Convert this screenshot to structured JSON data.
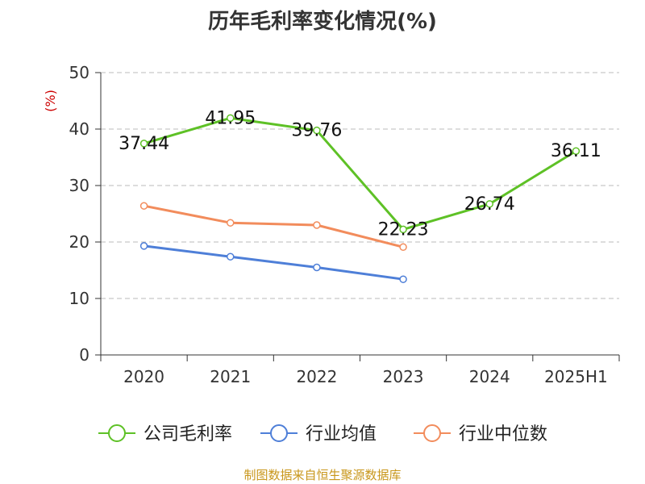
{
  "chart_data": {
    "type": "line",
    "title": "历年毛利率变化情况(%)",
    "ylabel": "(%)",
    "ylim": [
      0,
      50
    ],
    "yticks": [
      0,
      10,
      20,
      30,
      40,
      50
    ],
    "categories": [
      "2020",
      "2021",
      "2022",
      "2023",
      "2024",
      "2025H1"
    ],
    "grid": true,
    "legend_position": "bottom",
    "series": [
      {
        "name": "公司毛利率",
        "color": "#5ec126",
        "labels": true,
        "values": [
          37.44,
          41.95,
          39.76,
          22.23,
          26.74,
          36.11
        ]
      },
      {
        "name": "行业均值",
        "color": "#4e7fd8",
        "labels": false,
        "values": [
          19.3,
          17.4,
          15.5,
          13.4,
          null,
          null
        ]
      },
      {
        "name": "行业中位数",
        "color": "#f28c5c",
        "labels": false,
        "values": [
          26.4,
          23.4,
          23.0,
          19.1,
          null,
          null
        ]
      }
    ]
  },
  "source": "制图数据来自恒生聚源数据库"
}
